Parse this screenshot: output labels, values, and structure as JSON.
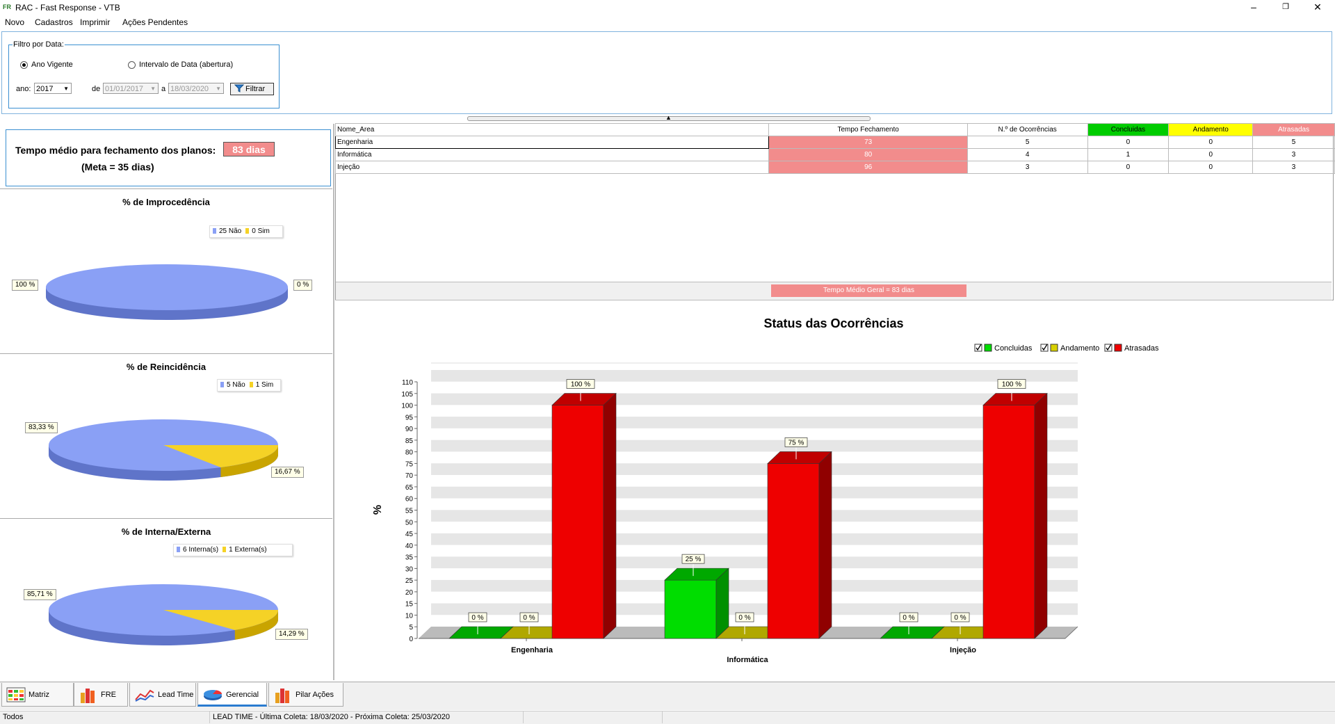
{
  "window": {
    "title": "RAC - Fast Response - VTB",
    "logo": "FR"
  },
  "menu": [
    "Novo",
    "Cadastros",
    "Imprimir",
    "Ações Pendentes"
  ],
  "filter": {
    "legend": "Filtro por Data:",
    "radio_year": "Ano Vigente",
    "radio_interval": "Intervalo de Data (abertura)",
    "year_label": "ano:",
    "year_value": "2017",
    "from_label": "de",
    "from_value": "01/01/2017",
    "to_label": "a",
    "to_value": "18/03/2020",
    "button": "Filtrar"
  },
  "summary": {
    "label": "Tempo médio para fechamento dos planos:",
    "value": "83 dias",
    "meta": "(Meta = 35 dias)"
  },
  "pies": [
    {
      "title": "% de Improcedência",
      "legend": [
        {
          "label": "25 Não",
          "color": "#8aa0f5"
        },
        {
          "label": "0 Sim",
          "color": "#f5d226"
        }
      ],
      "values": [
        100,
        0
      ],
      "labels": [
        "100 %",
        "0 %"
      ]
    },
    {
      "title": "% de Reincidência",
      "legend": [
        {
          "label": "5 Não",
          "color": "#8aa0f5"
        },
        {
          "label": "1 Sim",
          "color": "#f5d226"
        }
      ],
      "values": [
        83.33,
        16.67
      ],
      "labels": [
        "83,33 %",
        "16,67 %"
      ]
    },
    {
      "title": "% de Interna/Externa",
      "legend": [
        {
          "label": "6 Interna(s)",
          "color": "#8aa0f5"
        },
        {
          "label": "1 Externa(s)",
          "color": "#f5d226"
        }
      ],
      "values": [
        85.71,
        14.29
      ],
      "labels": [
        "85,71 %",
        "14,29 %"
      ]
    }
  ],
  "table": {
    "headers": [
      "Nome_Area",
      "Tempo Fechamento",
      "N.º de Ocorrências",
      "Concluidas",
      "Andamento",
      "Atrasadas"
    ],
    "header_colors": [
      "#ffffff",
      "#ffffff",
      "#ffffff",
      "#00cc00",
      "#ffff00",
      "#f28c8c"
    ],
    "rows": [
      [
        "Engenharia",
        "73",
        "5",
        "0",
        "0",
        "5"
      ],
      [
        "Informática",
        "80",
        "4",
        "1",
        "0",
        "3"
      ],
      [
        "Injeção",
        "96",
        "3",
        "0",
        "0",
        "3"
      ]
    ],
    "footer": "Tempo Médio Geral = 83 dias"
  },
  "chart_data": {
    "type": "bar",
    "title": "Status das Ocorrências",
    "ylabel": "%",
    "xlabel": "",
    "ylim": [
      0,
      110
    ],
    "yticks": [
      0,
      5,
      10,
      15,
      20,
      25,
      30,
      35,
      40,
      45,
      50,
      55,
      60,
      65,
      70,
      75,
      80,
      85,
      90,
      95,
      100,
      105,
      110
    ],
    "categories": [
      "Engenharia",
      "Informática",
      "Injeção"
    ],
    "series": [
      {
        "name": "Concluidas",
        "color": "#00dd00",
        "values": [
          0,
          25,
          0
        ]
      },
      {
        "name": "Andamento",
        "color": "#d8d000",
        "values": [
          0,
          0,
          0
        ]
      },
      {
        "name": "Atrasadas",
        "color": "#ee0000",
        "values": [
          100,
          75,
          100
        ]
      }
    ],
    "legend_position": "top-right",
    "grid": true
  },
  "tabs": [
    {
      "label": "Matriz",
      "icon": "matrix-icon"
    },
    {
      "label": "FRE",
      "icon": "bar-chart-icon"
    },
    {
      "label": "Lead Time",
      "icon": "line-chart-icon"
    },
    {
      "label": "Gerencial",
      "icon": "pie-chart-icon"
    },
    {
      "label": "Pilar Ações",
      "icon": "bar-chart-icon"
    }
  ],
  "status": {
    "left": "Todos",
    "middle": "LEAD TIME - Última Coleta: 18/03/2020  -  Próxima Coleta: 25/03/2020"
  }
}
